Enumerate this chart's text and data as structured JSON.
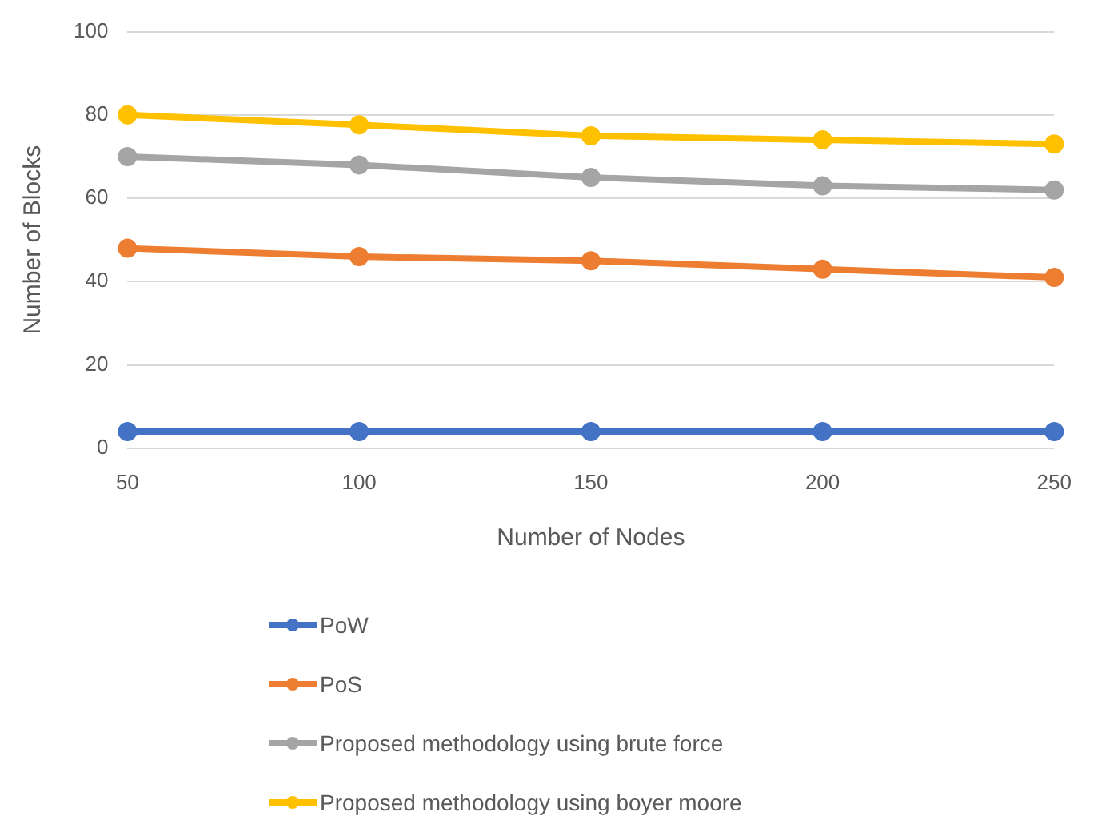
{
  "chart_data": {
    "type": "line",
    "xlabel": "Number of Nodes",
    "ylabel": "Number of Blocks",
    "categories": [
      "50",
      "100",
      "150",
      "200",
      "250"
    ],
    "ylim": [
      0,
      100
    ],
    "yticks": [
      0,
      20,
      40,
      60,
      80,
      100
    ],
    "grid": "y",
    "legend": "bottom",
    "marker": "circle",
    "line_style": "solid",
    "series": [
      {
        "name": "PoW",
        "color": "#4472c4",
        "values": [
          4,
          4,
          4,
          4,
          4
        ]
      },
      {
        "name": "PoS",
        "color": "#ed7d31",
        "values": [
          48,
          46,
          45,
          43,
          41
        ]
      },
      {
        "name": "Proposed methodology using brute force",
        "color": "#a5a5a5",
        "values": [
          70,
          68,
          65,
          63,
          62
        ]
      },
      {
        "name": "Proposed methodology using boyer moore",
        "color": "#ffc000",
        "values": [
          80,
          77.6,
          75,
          74,
          73
        ]
      }
    ]
  }
}
